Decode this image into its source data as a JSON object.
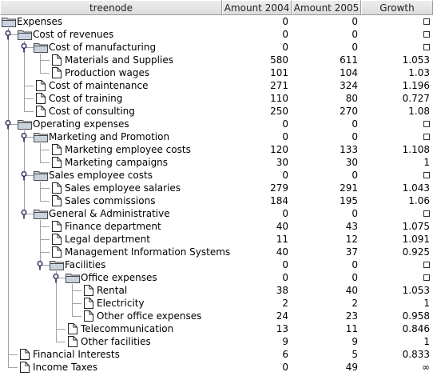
{
  "columns": [
    {
      "label": "treenode"
    },
    {
      "label": "Amount 2004"
    },
    {
      "label": "Amount 2005"
    },
    {
      "label": "Growth"
    }
  ],
  "rows": [
    {
      "label": "Expenses",
      "depth": 0,
      "type": "folder",
      "expanded": false,
      "a2004": "0",
      "a2005": "0",
      "growth": "",
      "growth_mark": "checkbox"
    },
    {
      "label": "Cost of revenues",
      "depth": 1,
      "type": "folder",
      "expanded": true,
      "a2004": "0",
      "a2005": "0",
      "growth": "",
      "growth_mark": "checkbox"
    },
    {
      "label": "Cost of manufacturing",
      "depth": 2,
      "type": "folder",
      "expanded": true,
      "a2004": "0",
      "a2005": "0",
      "growth": "",
      "growth_mark": "checkbox"
    },
    {
      "label": "Materials and Supplies",
      "depth": 3,
      "type": "leaf",
      "a2004": "580",
      "a2005": "611",
      "growth": "1.053"
    },
    {
      "label": "Production wages",
      "depth": 3,
      "type": "leaf",
      "a2004": "101",
      "a2005": "104",
      "growth": "1.03"
    },
    {
      "label": "Cost of maintenance",
      "depth": 2,
      "type": "leaf",
      "a2004": "271",
      "a2005": "324",
      "growth": "1.196"
    },
    {
      "label": "Cost of training",
      "depth": 2,
      "type": "leaf",
      "a2004": "110",
      "a2005": "80",
      "growth": "0.727"
    },
    {
      "label": "Cost of consulting",
      "depth": 2,
      "type": "leaf",
      "a2004": "250",
      "a2005": "270",
      "growth": "1.08"
    },
    {
      "label": "Operating expenses",
      "depth": 1,
      "type": "folder",
      "expanded": true,
      "a2004": "0",
      "a2005": "0",
      "growth": "",
      "growth_mark": "checkbox"
    },
    {
      "label": "Marketing and Promotion",
      "depth": 2,
      "type": "folder",
      "expanded": true,
      "a2004": "0",
      "a2005": "0",
      "growth": "",
      "growth_mark": "checkbox"
    },
    {
      "label": "Marketing employee costs",
      "depth": 3,
      "type": "leaf",
      "a2004": "120",
      "a2005": "133",
      "growth": "1.108"
    },
    {
      "label": "Marketing campaigns",
      "depth": 3,
      "type": "leaf",
      "a2004": "30",
      "a2005": "30",
      "growth": "1"
    },
    {
      "label": "Sales employee costs",
      "depth": 2,
      "type": "folder",
      "expanded": true,
      "a2004": "0",
      "a2005": "0",
      "growth": "",
      "growth_mark": "checkbox"
    },
    {
      "label": "Sales employee salaries",
      "depth": 3,
      "type": "leaf",
      "a2004": "279",
      "a2005": "291",
      "growth": "1.043"
    },
    {
      "label": "Sales commissions",
      "depth": 3,
      "type": "leaf",
      "a2004": "184",
      "a2005": "195",
      "growth": "1.06"
    },
    {
      "label": "General & Administrative",
      "depth": 2,
      "type": "folder",
      "expanded": true,
      "a2004": "0",
      "a2005": "0",
      "growth": "",
      "growth_mark": "checkbox"
    },
    {
      "label": "Finance department",
      "depth": 3,
      "type": "leaf",
      "a2004": "40",
      "a2005": "43",
      "growth": "1.075"
    },
    {
      "label": "Legal department",
      "depth": 3,
      "type": "leaf",
      "a2004": "11",
      "a2005": "12",
      "growth": "1.091"
    },
    {
      "label": "Management Information Systems",
      "depth": 3,
      "type": "leaf",
      "a2004": "40",
      "a2005": "37",
      "growth": "0.925"
    },
    {
      "label": "Facilities",
      "depth": 3,
      "type": "folder",
      "expanded": true,
      "a2004": "0",
      "a2005": "0",
      "growth": "",
      "growth_mark": "checkbox"
    },
    {
      "label": "Office expenses",
      "depth": 4,
      "type": "folder",
      "expanded": true,
      "a2004": "0",
      "a2005": "0",
      "growth": "",
      "growth_mark": "checkbox"
    },
    {
      "label": "Rental",
      "depth": 5,
      "type": "leaf",
      "a2004": "38",
      "a2005": "40",
      "growth": "1.053"
    },
    {
      "label": "Electricity",
      "depth": 5,
      "type": "leaf",
      "a2004": "2",
      "a2005": "2",
      "growth": "1"
    },
    {
      "label": "Other office expenses",
      "depth": 5,
      "type": "leaf",
      "a2004": "24",
      "a2005": "23",
      "growth": "0.958"
    },
    {
      "label": "Telecommunication",
      "depth": 4,
      "type": "leaf",
      "a2004": "13",
      "a2005": "11",
      "growth": "0.846"
    },
    {
      "label": "Other facilities",
      "depth": 4,
      "type": "leaf",
      "a2004": "9",
      "a2005": "9",
      "growth": "1"
    },
    {
      "label": "Financial Interests",
      "depth": 1,
      "type": "leaf",
      "a2004": "6",
      "a2005": "5",
      "growth": "0.833"
    },
    {
      "label": "Income Taxes",
      "depth": 1,
      "type": "leaf",
      "a2004": "0",
      "a2005": "49",
      "growth": "∞"
    }
  ]
}
